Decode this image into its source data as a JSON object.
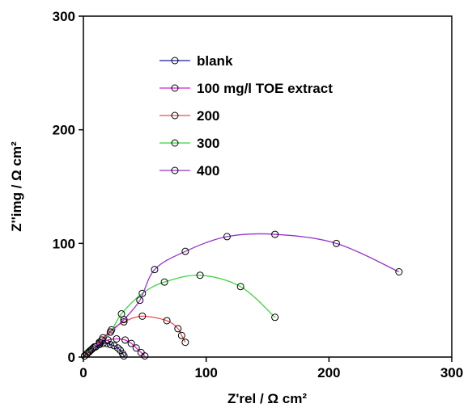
{
  "chart_data": {
    "type": "scatter",
    "xlabel": "Z'rel / Ω cm²",
    "ylabel": "Z''img / Ω cm²",
    "xlim": [
      0,
      300
    ],
    "ylim": [
      0,
      300
    ],
    "xticks": [
      "0",
      "100",
      "200",
      "300"
    ],
    "yticks": [
      "0",
      "100",
      "200",
      "300"
    ],
    "grid": false,
    "legend_position": "top-left",
    "series": [
      {
        "name": "blank",
        "color": "#1f1f9e",
        "points": [
          [
            1,
            1
          ],
          [
            3,
            3
          ],
          [
            5,
            5
          ],
          [
            7,
            7
          ],
          [
            10,
            9
          ],
          [
            13,
            11
          ],
          [
            16,
            12
          ],
          [
            19,
            12
          ],
          [
            22,
            11
          ],
          [
            25,
            10
          ],
          [
            28,
            8
          ],
          [
            30,
            6
          ],
          [
            32,
            3
          ],
          [
            33,
            1
          ]
        ]
      },
      {
        "name": "100 mg/l TOE extract",
        "color": "#d61ed6",
        "points": [
          [
            1,
            1
          ],
          [
            4,
            4
          ],
          [
            8,
            8
          ],
          [
            13,
            12
          ],
          [
            20,
            15
          ],
          [
            27,
            16
          ],
          [
            34,
            15
          ],
          [
            39,
            12
          ],
          [
            43,
            8
          ],
          [
            47,
            4
          ],
          [
            50,
            1
          ]
        ]
      },
      {
        "name": "200",
        "color": "#e8514f",
        "points": [
          [
            3,
            3
          ],
          [
            9,
            9
          ],
          [
            16,
            17
          ],
          [
            23,
            24
          ],
          [
            33,
            31
          ],
          [
            48,
            36
          ],
          [
            68,
            32
          ],
          [
            77,
            25
          ],
          [
            80,
            19
          ],
          [
            83,
            13
          ]
        ]
      },
      {
        "name": "300",
        "color": "#3fd43f",
        "points": [
          [
            5,
            5
          ],
          [
            13,
            13
          ],
          [
            22,
            22
          ],
          [
            31,
            38
          ],
          [
            48,
            56
          ],
          [
            66,
            66
          ],
          [
            95,
            72
          ],
          [
            128,
            62
          ],
          [
            156,
            35
          ]
        ]
      },
      {
        "name": "400",
        "color": "#9933cc",
        "points": [
          [
            6,
            6
          ],
          [
            15,
            15
          ],
          [
            22,
            22
          ],
          [
            33,
            33
          ],
          [
            46,
            50
          ],
          [
            58,
            77
          ],
          [
            83,
            93
          ],
          [
            117,
            106
          ],
          [
            156,
            108
          ],
          [
            206,
            100
          ],
          [
            257,
            75
          ]
        ]
      }
    ]
  }
}
